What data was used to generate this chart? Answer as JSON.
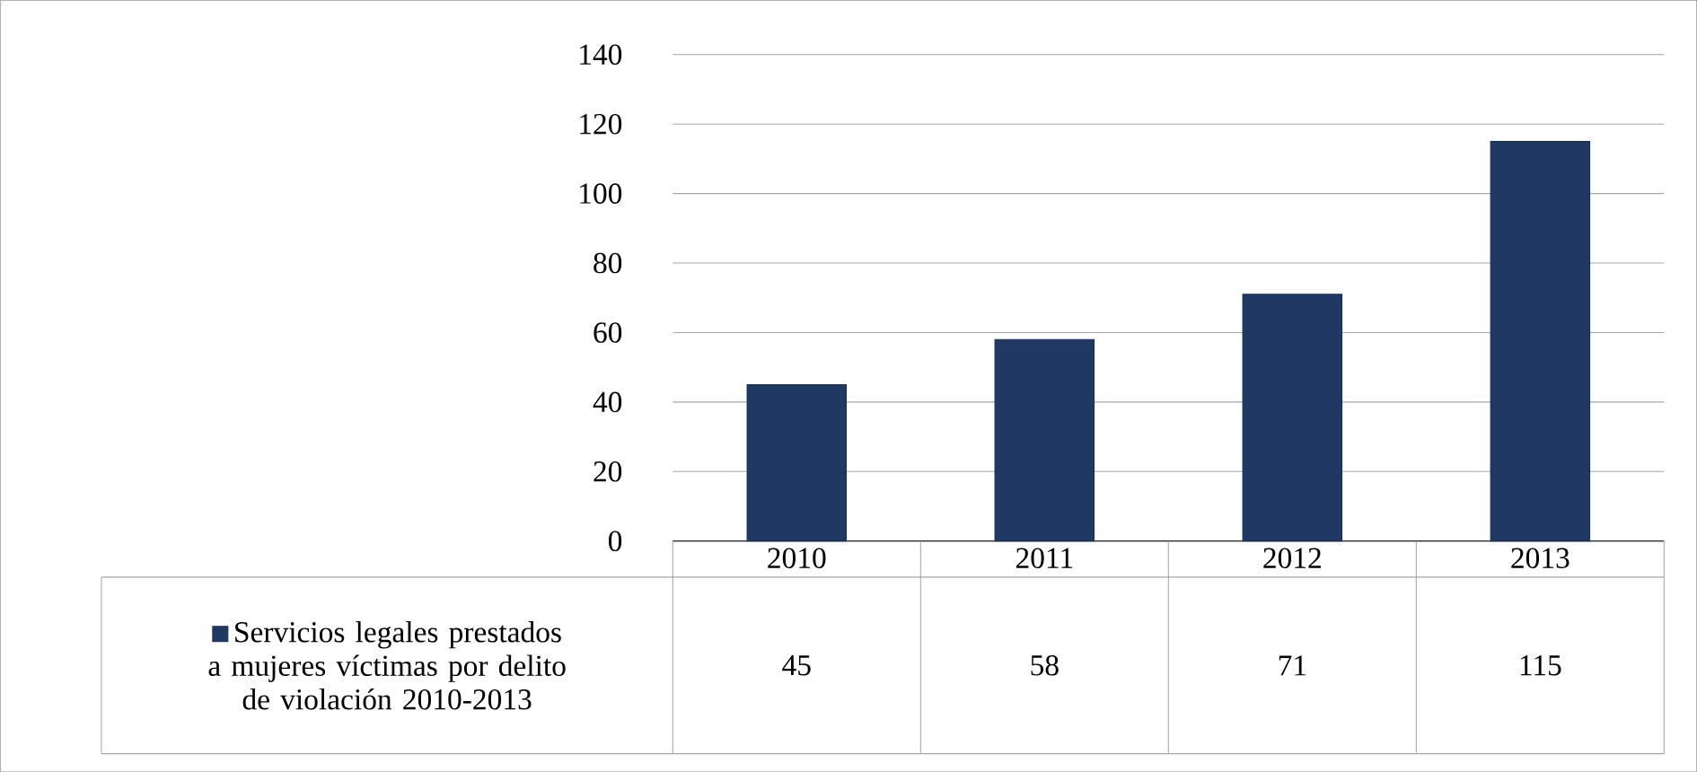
{
  "chart_data": {
    "type": "bar",
    "categories": [
      "2010",
      "2011",
      "2012",
      "2013"
    ],
    "series": [
      {
        "name": "Servicios legales prestados a mujeres víctimas por delito de violación 2010-2013",
        "color": "#1f3864",
        "values": [
          45,
          58,
          71,
          115
        ]
      }
    ],
    "ylim": [
      0,
      140
    ],
    "yticks": [
      0,
      20,
      40,
      60,
      80,
      100,
      120,
      140
    ],
    "grid": "y",
    "data_labels": true,
    "legend": "bottom left"
  }
}
